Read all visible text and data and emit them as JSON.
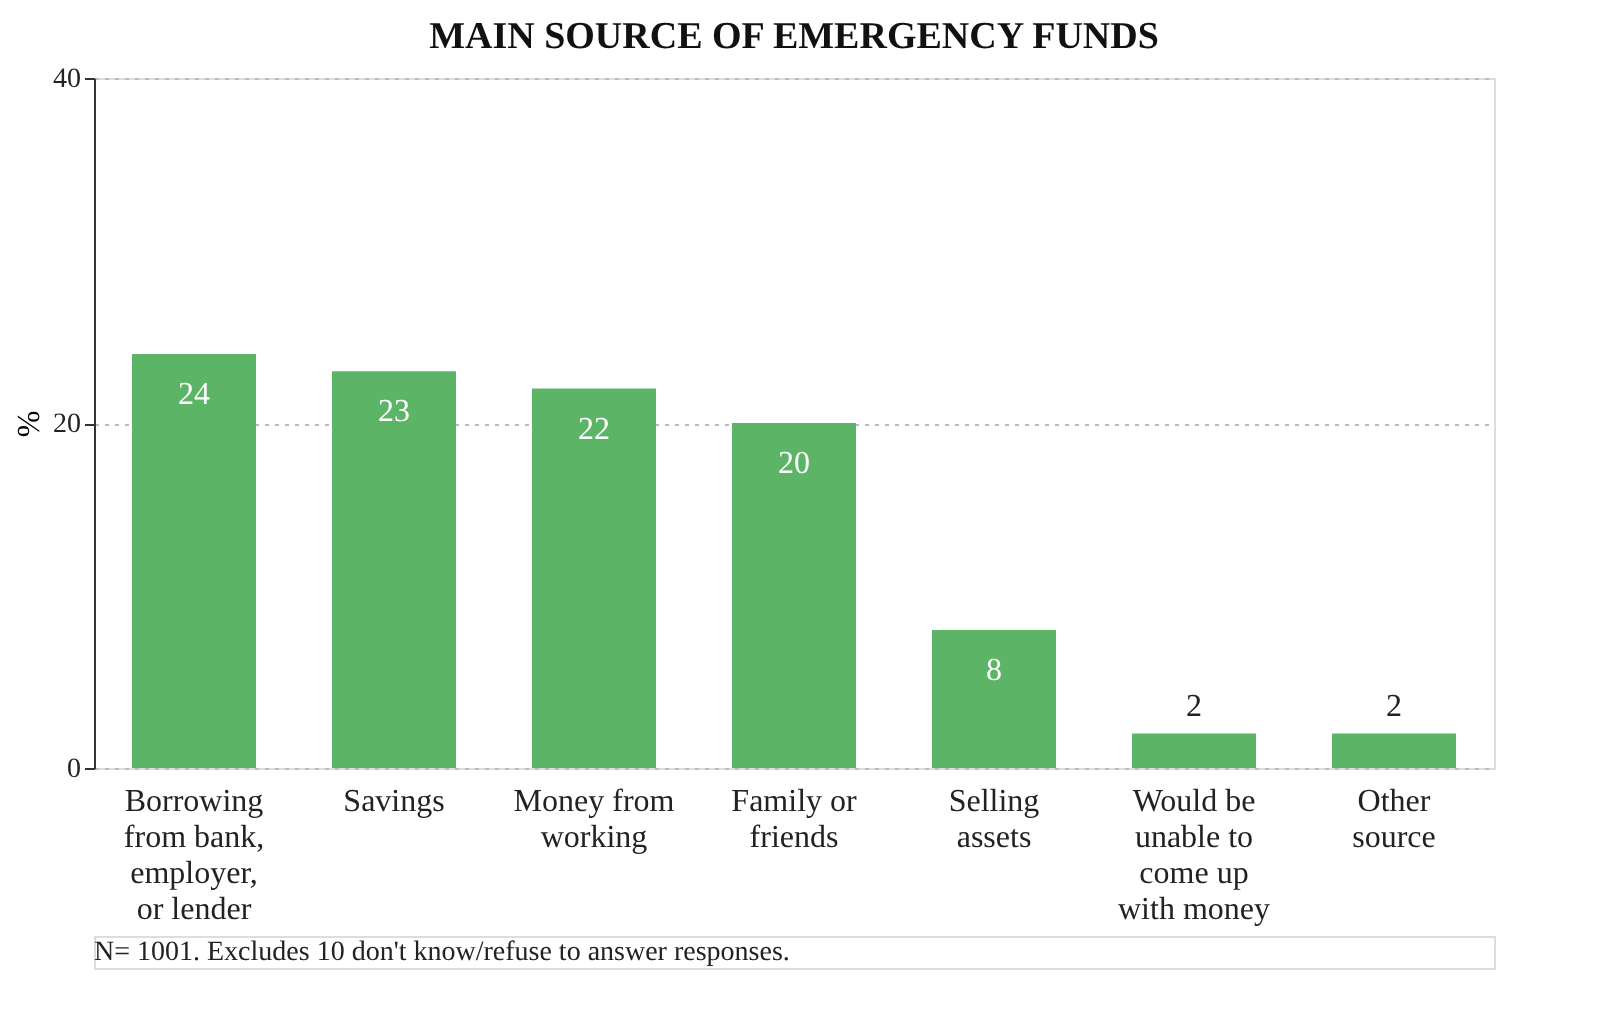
{
  "chart_data": {
    "type": "bar",
    "title": "MAIN SOURCE OF EMERGENCY FUNDS",
    "ylabel": "%",
    "categories": [
      "Borrowing from bank, employer, or lender",
      "Savings",
      "Money from working",
      "Family or friends",
      "Selling assets",
      "Would be unable to come up with money",
      "Other source"
    ],
    "values": [
      24,
      23,
      22,
      20,
      8,
      2,
      2
    ],
    "color": "#5cb567",
    "data_labels": true,
    "ylim": [
      0,
      40
    ],
    "yticks": [
      0,
      20,
      40
    ],
    "grid": "y",
    "annotations": [
      "N= 1001.  Excludes 10 don't know/refuse to answer responses."
    ]
  }
}
